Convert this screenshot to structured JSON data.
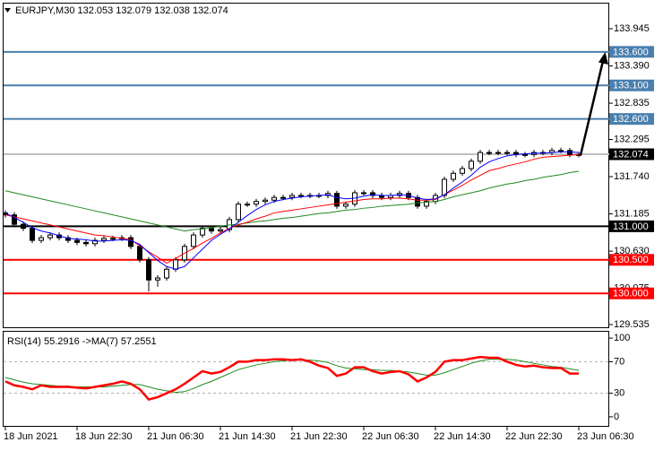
{
  "chart_data": [
    {
      "type": "candlestick",
      "title": "EURJPY,M30  132.053 132.079 132.038 132.074",
      "categories": [
        "18 Jun 2021",
        null,
        null,
        null,
        null,
        null,
        null,
        null,
        "18 Jun 22:30",
        null,
        null,
        null,
        null,
        null,
        null,
        null,
        "21 Jun 06:30",
        null,
        null,
        null,
        null,
        null,
        null,
        null,
        "21 Jun 14:30",
        null,
        null,
        null,
        null,
        null,
        null,
        null,
        "21 Jun 22:30",
        null,
        null,
        null,
        null,
        null,
        null,
        null,
        "22 Jun 06:30",
        null,
        null,
        null,
        null,
        null,
        null,
        null,
        "22 Jun 14:30",
        null,
        null,
        null,
        null,
        null,
        null,
        null,
        "22 Jun 22:30",
        null,
        null,
        null,
        null,
        null,
        null,
        null,
        "23 Jun 06:30"
      ],
      "open": [
        131.2,
        131.17,
        131.03,
        130.97,
        130.79,
        130.83,
        130.87,
        130.83,
        130.79,
        130.76,
        130.74,
        130.79,
        130.82,
        130.82,
        130.83,
        130.7,
        130.5,
        130.2,
        130.23,
        130.36,
        130.5,
        130.7,
        130.87,
        130.97,
        130.93,
        130.95,
        131.1,
        131.33,
        131.33,
        131.37,
        131.39,
        131.43,
        131.43,
        131.46,
        131.46,
        131.46,
        131.46,
        131.49,
        131.3,
        131.33,
        131.5,
        131.5,
        131.46,
        131.43,
        131.46,
        131.49,
        131.43,
        131.3,
        131.37,
        131.46,
        131.7,
        131.79,
        131.86,
        131.97,
        132.1,
        132.1,
        132.1,
        132.1,
        132.07,
        132.07,
        132.1,
        132.1,
        132.13,
        132.13,
        132.07
      ],
      "high": [
        131.24,
        131.21,
        131.07,
        131.01,
        130.87,
        130.91,
        130.91,
        130.87,
        130.83,
        130.8,
        130.83,
        130.86,
        130.86,
        130.87,
        130.87,
        130.74,
        130.54,
        130.27,
        130.4,
        130.54,
        130.74,
        130.91,
        131.01,
        131.01,
        130.99,
        131.14,
        131.37,
        131.37,
        131.41,
        131.43,
        131.47,
        131.47,
        131.5,
        131.5,
        131.5,
        131.5,
        131.53,
        131.53,
        131.37,
        131.54,
        131.54,
        131.54,
        131.5,
        131.5,
        131.53,
        131.53,
        131.47,
        131.41,
        131.5,
        131.74,
        131.83,
        131.9,
        132.01,
        132.14,
        132.14,
        132.14,
        132.14,
        132.14,
        132.11,
        132.14,
        132.14,
        132.17,
        132.17,
        132.17,
        132.11
      ],
      "low": [
        131.13,
        130.99,
        130.93,
        130.75,
        130.75,
        130.79,
        130.79,
        130.75,
        130.72,
        130.7,
        130.7,
        130.75,
        130.78,
        130.78,
        130.66,
        130.46,
        130.03,
        130.1,
        130.19,
        130.32,
        130.46,
        130.66,
        130.83,
        130.89,
        130.89,
        130.91,
        131.06,
        131.29,
        131.29,
        131.33,
        131.35,
        131.39,
        131.39,
        131.42,
        131.42,
        131.42,
        131.42,
        131.26,
        131.26,
        131.29,
        131.46,
        131.42,
        131.39,
        131.39,
        131.42,
        131.39,
        131.26,
        131.26,
        131.33,
        131.42,
        131.66,
        131.75,
        131.82,
        131.93,
        132.06,
        132.06,
        132.06,
        132.03,
        132.03,
        132.03,
        132.06,
        132.06,
        132.09,
        132.03,
        132.03
      ],
      "close": [
        131.17,
        131.03,
        130.97,
        130.79,
        130.83,
        130.87,
        130.83,
        130.79,
        130.76,
        130.74,
        130.79,
        130.82,
        130.82,
        130.83,
        130.7,
        130.5,
        130.2,
        130.23,
        130.36,
        130.5,
        130.7,
        130.87,
        130.97,
        130.93,
        130.95,
        131.1,
        131.33,
        131.33,
        131.37,
        131.39,
        131.43,
        131.43,
        131.46,
        131.46,
        131.46,
        131.46,
        131.49,
        131.3,
        131.33,
        131.5,
        131.5,
        131.46,
        131.43,
        131.46,
        131.49,
        131.43,
        131.3,
        131.37,
        131.46,
        131.7,
        131.79,
        131.86,
        131.97,
        132.1,
        132.1,
        132.1,
        132.1,
        132.07,
        132.07,
        132.1,
        132.1,
        132.13,
        132.13,
        132.07,
        132.07
      ],
      "up_color": "#ffffff",
      "down_color": "#000000",
      "series": [
        {
          "color": "#1f8a1f",
          "values": [
            131.53,
            131.5,
            131.47,
            131.44,
            131.41,
            131.38,
            131.35,
            131.32,
            131.29,
            131.26,
            131.23,
            131.2,
            131.17,
            131.14,
            131.11,
            131.08,
            131.05,
            131.02,
            130.99,
            130.96,
            130.93,
            130.95,
            130.96,
            130.98,
            131.0,
            131.02,
            131.03,
            131.05,
            131.07,
            131.08,
            131.1,
            131.12,
            131.13,
            131.15,
            131.17,
            131.19,
            131.2,
            131.22,
            131.24,
            131.25,
            131.27,
            131.28,
            131.3,
            131.31,
            131.32,
            131.33,
            131.35,
            131.36,
            131.37,
            131.4,
            131.44,
            131.47,
            131.5,
            131.53,
            131.57,
            131.6,
            131.63,
            131.65,
            131.68,
            131.7,
            131.73,
            131.75,
            131.77,
            131.8,
            131.82
          ]
        },
        {
          "color": "#ff0000",
          "values": [
            131.17,
            131.14,
            131.11,
            131.08,
            131.05,
            131.02,
            130.99,
            130.96,
            130.93,
            130.9,
            130.87,
            130.86,
            130.84,
            130.82,
            130.8,
            130.71,
            130.62,
            130.54,
            130.45,
            130.52,
            130.6,
            130.67,
            130.75,
            130.82,
            130.9,
            130.97,
            131.02,
            131.06,
            131.11,
            131.15,
            131.2,
            131.22,
            131.24,
            131.26,
            131.28,
            131.3,
            131.32,
            131.34,
            131.36,
            131.38,
            131.4,
            131.41,
            131.41,
            131.42,
            131.42,
            131.41,
            131.39,
            131.39,
            131.4,
            131.47,
            131.54,
            131.61,
            131.69,
            131.76,
            131.83,
            131.86,
            131.9,
            131.93,
            131.96,
            132.0,
            132.03,
            132.04,
            132.05,
            132.06,
            132.07
          ]
        },
        {
          "color": "#0000ff",
          "values": [
            131.2,
            131.13,
            131.06,
            130.98,
            130.93,
            130.9,
            130.86,
            130.82,
            130.81,
            130.8,
            130.78,
            130.78,
            130.79,
            130.8,
            130.79,
            130.73,
            130.61,
            130.49,
            130.4,
            130.36,
            130.4,
            130.53,
            130.66,
            130.79,
            130.88,
            130.96,
            131.06,
            131.16,
            131.25,
            131.32,
            131.37,
            131.4,
            131.42,
            131.44,
            131.45,
            131.46,
            131.47,
            131.43,
            131.41,
            131.42,
            131.45,
            131.47,
            131.46,
            131.46,
            131.47,
            131.46,
            131.42,
            131.4,
            131.41,
            131.47,
            131.57,
            131.66,
            131.76,
            131.88,
            131.96,
            132.01,
            132.05,
            132.07,
            132.08,
            132.09,
            132.09,
            132.1,
            132.11,
            132.11,
            132.1
          ]
        }
      ],
      "ylim": [
        129.495,
        134.333
      ],
      "yticks": [
        133.945,
        {
          "value": 133.39,
          "label": "133.390"
        },
        132.835,
        132.295,
        {
          "value": 131.74,
          "label": "131.740"
        },
        131.185,
        {
          "value": 130.63,
          "label": "130.630"
        },
        130.075,
        129.535
      ],
      "levels": [
        {
          "value": 133.6,
          "label": "133.600",
          "color": "#4a7fae",
          "label_color": "#4a7fae"
        },
        {
          "value": 133.1,
          "label": "133.100",
          "color": "#4a7fae",
          "label_color": "#4a7fae"
        },
        {
          "value": 132.6,
          "label": "132.600",
          "color": "#4a7fae",
          "label_color": "#4a7fae"
        },
        {
          "value": 132.074,
          "label": "132.074",
          "color": "#c0c0c0",
          "label_color": "#000000"
        },
        {
          "value": 131.0,
          "label": "131.000",
          "color": "#000000",
          "label_color": "#000000"
        },
        {
          "value": 130.5,
          "label": "130.500",
          "color": "#ff0000",
          "label_color": "#ff0000"
        },
        {
          "value": 130.0,
          "label": "130.000",
          "color": "#ff0000",
          "label_color": "#ff0000"
        }
      ]
    },
    {
      "type": "line",
      "title": "RSI(14) 55.2916  ->MA(7) 57.2551",
      "series": [
        {
          "color": "#1f8a1f",
          "values": [
            50,
            47,
            44,
            42,
            41,
            40,
            39,
            39,
            38,
            38,
            38,
            38,
            39,
            40,
            41,
            41,
            38,
            35,
            33,
            31,
            32,
            36,
            41,
            45,
            50,
            55,
            60,
            63,
            66,
            68,
            70,
            71,
            72,
            72,
            72,
            71,
            69,
            65,
            62,
            61,
            60,
            60,
            59,
            59,
            58,
            57,
            55,
            53,
            53,
            56,
            60,
            64,
            68,
            71,
            73,
            73,
            73,
            72,
            70,
            68,
            66,
            64,
            63,
            61,
            59
          ]
        },
        {
          "color": "#ff0000",
          "values": [
            45,
            40,
            38,
            35,
            40,
            38,
            38,
            38,
            37,
            36,
            38,
            40,
            42,
            45,
            42,
            35,
            22,
            25,
            30,
            35,
            42,
            50,
            58,
            55,
            57,
            63,
            70,
            70,
            72,
            72,
            73,
            73,
            72,
            73,
            70,
            65,
            62,
            52,
            55,
            63,
            63,
            58,
            55,
            57,
            58,
            54,
            45,
            50,
            57,
            70,
            72,
            72,
            74,
            76,
            75,
            75,
            70,
            66,
            64,
            65,
            63,
            62,
            62,
            55,
            55
          ]
        }
      ],
      "ylim": [
        -11.5,
        109.2
      ],
      "yticks": [
        100,
        70,
        30,
        0
      ],
      "levels": [
        70,
        30
      ]
    }
  ]
}
